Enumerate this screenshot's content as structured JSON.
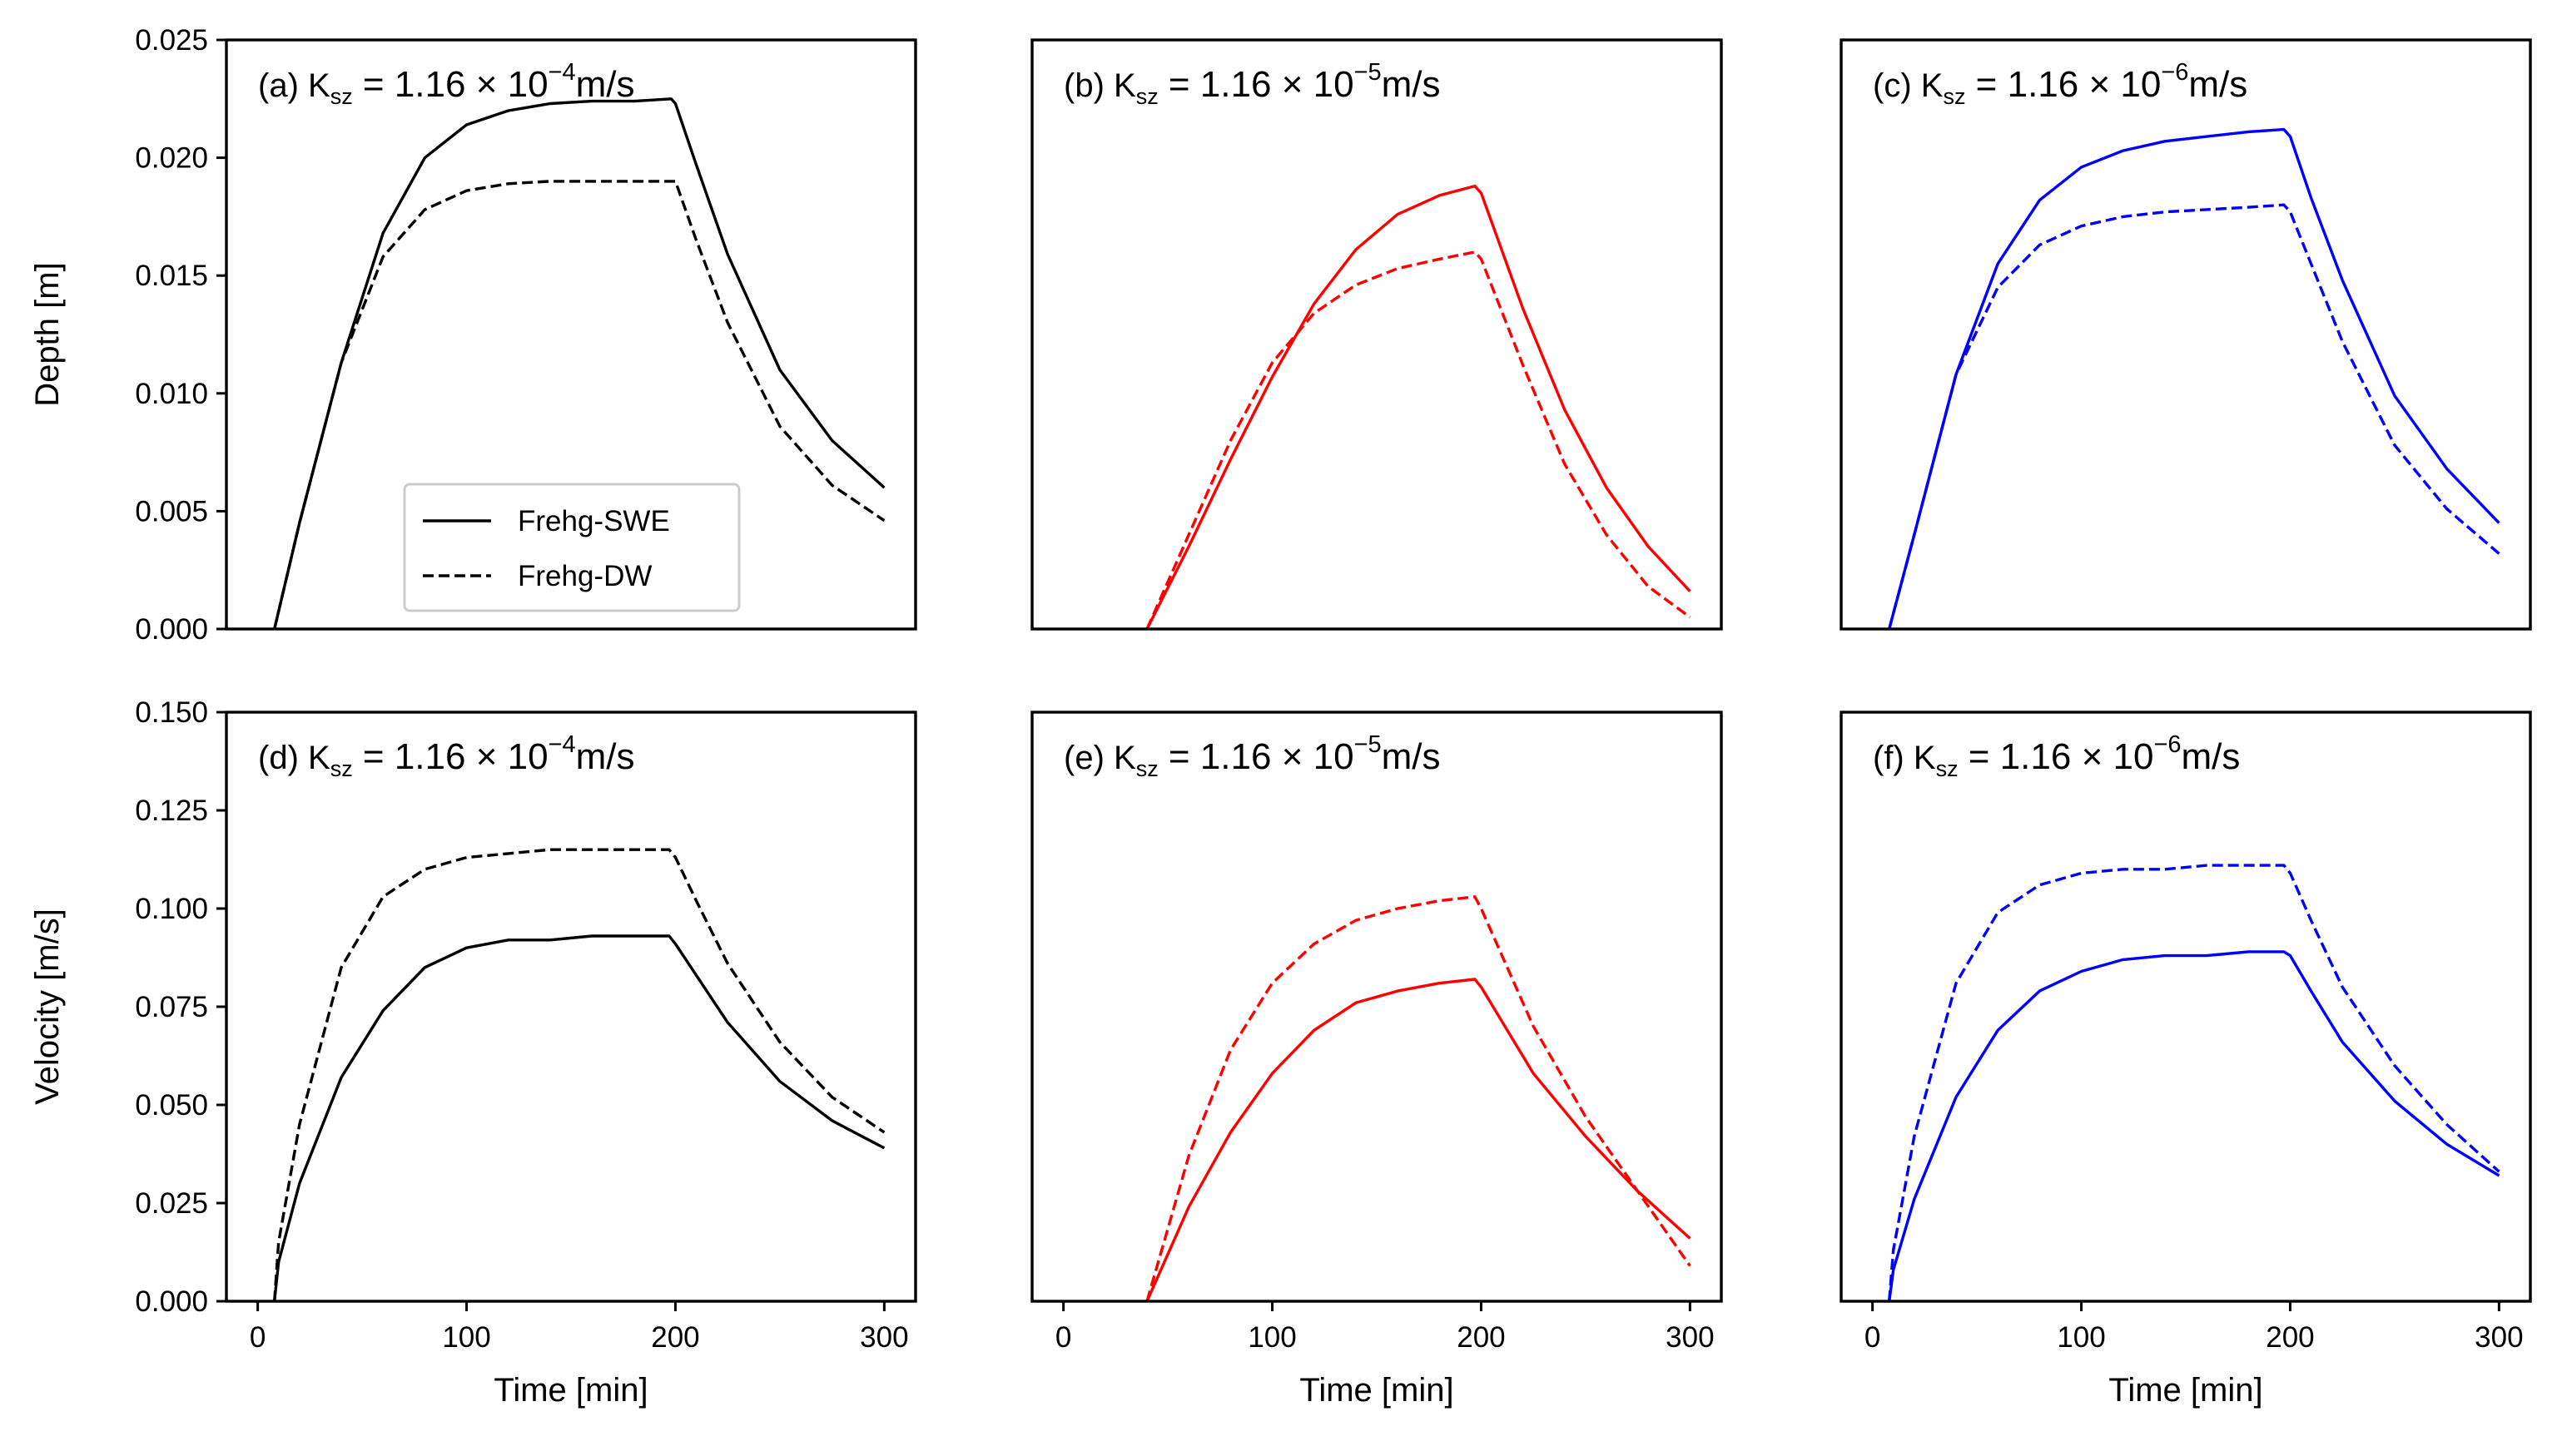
{
  "chart_data": [
    {
      "type": "line",
      "panel": "(a)",
      "label": {
        "prefix": "(a)",
        "symbol": "K",
        "subscript": "sz",
        "mantissa": "= 1.16 × 10",
        "exponent": "−4",
        "unit": "m/s"
      },
      "xlabel": "",
      "ylabel": "Depth [m]",
      "xlim": [
        -15,
        315
      ],
      "ylim": [
        0,
        0.025
      ],
      "yticks": [
        "0.000",
        "0.005",
        "0.010",
        "0.015",
        "0.020",
        "0.025"
      ],
      "xticks": [],
      "color": "#000000",
      "series": [
        {
          "name": "Frehg-SWE",
          "linestyle": "solid",
          "x": [
            8,
            20,
            40,
            60,
            80,
            100,
            120,
            140,
            160,
            180,
            198,
            200,
            210,
            225,
            250,
            275,
            300
          ],
          "y": [
            0.0,
            0.0045,
            0.0113,
            0.0168,
            0.02,
            0.0214,
            0.022,
            0.0223,
            0.0224,
            0.0224,
            0.0225,
            0.0223,
            0.0197,
            0.0159,
            0.011,
            0.008,
            0.006
          ]
        },
        {
          "name": "Frehg-DW",
          "linestyle": "dashed",
          "x": [
            8,
            20,
            40,
            60,
            80,
            100,
            120,
            140,
            160,
            180,
            200,
            210,
            225,
            250,
            275,
            300
          ],
          "y": [
            0.0,
            0.0045,
            0.0113,
            0.0158,
            0.0178,
            0.0186,
            0.0189,
            0.019,
            0.019,
            0.019,
            0.019,
            0.0165,
            0.013,
            0.0086,
            0.0061,
            0.0046
          ]
        }
      ],
      "legend": {
        "placement": "lower-center",
        "entries": [
          "Frehg-SWE",
          "Frehg-DW"
        ]
      }
    },
    {
      "type": "line",
      "panel": "(b)",
      "label": {
        "prefix": "(b)",
        "symbol": "K",
        "subscript": "sz",
        "mantissa": "= 1.16 × 10",
        "exponent": "−5",
        "unit": "m/s"
      },
      "xlabel": "",
      "ylabel": "",
      "xlim": [
        -15,
        315
      ],
      "ylim": [
        0,
        0.025
      ],
      "yticks": [],
      "xticks": [],
      "color": "#ff0000",
      "series": [
        {
          "name": "Frehg-SWE",
          "linestyle": "solid",
          "x": [
            40,
            60,
            80,
            100,
            120,
            140,
            160,
            180,
            197,
            200,
            220,
            240,
            260,
            280,
            300
          ],
          "y": [
            0.0,
            0.0035,
            0.0072,
            0.0107,
            0.0138,
            0.0161,
            0.0176,
            0.0184,
            0.0188,
            0.0185,
            0.0136,
            0.0093,
            0.006,
            0.0035,
            0.0016
          ]
        },
        {
          "name": "Frehg-DW",
          "linestyle": "dashed",
          "x": [
            40,
            60,
            80,
            100,
            120,
            140,
            160,
            180,
            197,
            200,
            220,
            240,
            260,
            280,
            300
          ],
          "y": [
            0.0,
            0.004,
            0.008,
            0.0113,
            0.0134,
            0.0146,
            0.0153,
            0.0157,
            0.016,
            0.0157,
            0.0112,
            0.007,
            0.004,
            0.0018,
            0.0005
          ]
        }
      ]
    },
    {
      "type": "line",
      "panel": "(c)",
      "label": {
        "prefix": "(c)",
        "symbol": "K",
        "subscript": "sz",
        "mantissa": "= 1.16 × 10",
        "exponent": "−6",
        "unit": "m/s"
      },
      "xlabel": "",
      "ylabel": "",
      "xlim": [
        -15,
        315
      ],
      "ylim": [
        0,
        0.025
      ],
      "yticks": [],
      "xticks": [],
      "color": "#0000ff",
      "series": [
        {
          "name": "Frehg-SWE",
          "linestyle": "solid",
          "x": [
            8,
            20,
            40,
            60,
            80,
            100,
            120,
            140,
            160,
            180,
            197,
            200,
            210,
            225,
            250,
            275,
            300
          ],
          "y": [
            0.0,
            0.004,
            0.0108,
            0.0155,
            0.0182,
            0.0196,
            0.0203,
            0.0207,
            0.0209,
            0.0211,
            0.0212,
            0.0209,
            0.0183,
            0.0148,
            0.0099,
            0.0068,
            0.0045
          ]
        },
        {
          "name": "Frehg-DW",
          "linestyle": "dashed",
          "x": [
            8,
            20,
            40,
            60,
            80,
            100,
            120,
            140,
            160,
            180,
            197,
            200,
            210,
            225,
            250,
            275,
            300
          ],
          "y": [
            0.0,
            0.004,
            0.0108,
            0.0145,
            0.0163,
            0.0171,
            0.0175,
            0.0177,
            0.0178,
            0.0179,
            0.018,
            0.0177,
            0.0155,
            0.0122,
            0.0078,
            0.0051,
            0.0032
          ]
        }
      ]
    },
    {
      "type": "line",
      "panel": "(d)",
      "label": {
        "prefix": "(d)",
        "symbol": "K",
        "subscript": "sz",
        "mantissa": "= 1.16 × 10",
        "exponent": "−4",
        "unit": "m/s"
      },
      "xlabel": "Time [min]",
      "ylabel": "Velocity [m/s]",
      "xlim": [
        -15,
        315
      ],
      "ylim": [
        0,
        0.15
      ],
      "yticks": [
        "0.000",
        "0.025",
        "0.050",
        "0.075",
        "0.100",
        "0.125",
        "0.150"
      ],
      "xticks": [
        "0",
        "100",
        "200",
        "300"
      ],
      "color": "#000000",
      "series": [
        {
          "name": "Frehg-SWE",
          "linestyle": "solid",
          "x": [
            8,
            10,
            20,
            40,
            60,
            80,
            100,
            120,
            140,
            160,
            180,
            197,
            200,
            210,
            225,
            250,
            275,
            300
          ],
          "y": [
            0.0,
            0.01,
            0.03,
            0.057,
            0.074,
            0.085,
            0.09,
            0.092,
            0.092,
            0.093,
            0.093,
            0.093,
            0.091,
            0.083,
            0.071,
            0.056,
            0.046,
            0.039
          ]
        },
        {
          "name": "Frehg-DW",
          "linestyle": "dashed",
          "x": [
            8,
            10,
            20,
            40,
            60,
            80,
            100,
            120,
            140,
            160,
            180,
            197,
            200,
            210,
            225,
            250,
            275,
            300
          ],
          "y": [
            0.0,
            0.015,
            0.045,
            0.085,
            0.103,
            0.11,
            0.113,
            0.114,
            0.115,
            0.115,
            0.115,
            0.115,
            0.113,
            0.102,
            0.086,
            0.066,
            0.052,
            0.043
          ]
        }
      ]
    },
    {
      "type": "line",
      "panel": "(e)",
      "label": {
        "prefix": "(e)",
        "symbol": "K",
        "subscript": "sz",
        "mantissa": "= 1.16 × 10",
        "exponent": "−5",
        "unit": "m/s"
      },
      "xlabel": "Time [min]",
      "ylabel": "",
      "xlim": [
        -15,
        315
      ],
      "ylim": [
        0,
        0.15
      ],
      "yticks": [],
      "xticks": [
        "0",
        "100",
        "200",
        "300"
      ],
      "color": "#ff0000",
      "series": [
        {
          "name": "Frehg-SWE",
          "linestyle": "solid",
          "x": [
            40,
            60,
            80,
            100,
            120,
            140,
            160,
            180,
            197,
            200,
            225,
            250,
            275,
            300
          ],
          "y": [
            0.0,
            0.024,
            0.043,
            0.058,
            0.069,
            0.076,
            0.079,
            0.081,
            0.082,
            0.08,
            0.058,
            0.042,
            0.028,
            0.016
          ]
        },
        {
          "name": "Frehg-DW",
          "linestyle": "dashed",
          "x": [
            40,
            60,
            80,
            100,
            120,
            140,
            160,
            180,
            197,
            200,
            225,
            250,
            275,
            300
          ],
          "y": [
            0.0,
            0.037,
            0.064,
            0.081,
            0.091,
            0.097,
            0.1,
            0.102,
            0.103,
            0.1,
            0.07,
            0.047,
            0.028,
            0.009
          ]
        }
      ]
    },
    {
      "type": "line",
      "panel": "(f)",
      "label": {
        "prefix": "(f)",
        "symbol": "K",
        "subscript": "sz",
        "mantissa": "= 1.16 × 10",
        "exponent": "−6",
        "unit": "m/s"
      },
      "xlabel": "Time [min]",
      "ylabel": "",
      "xlim": [
        -15,
        315
      ],
      "ylim": [
        0,
        0.15
      ],
      "yticks": [],
      "xticks": [
        "0",
        "100",
        "200",
        "300"
      ],
      "color": "#0000ff",
      "series": [
        {
          "name": "Frehg-SWE",
          "linestyle": "solid",
          "x": [
            8,
            10,
            20,
            40,
            60,
            80,
            100,
            120,
            140,
            160,
            180,
            197,
            200,
            210,
            225,
            250,
            275,
            300
          ],
          "y": [
            0.0,
            0.008,
            0.026,
            0.052,
            0.069,
            0.079,
            0.084,
            0.087,
            0.088,
            0.088,
            0.089,
            0.089,
            0.088,
            0.079,
            0.066,
            0.051,
            0.04,
            0.032
          ]
        },
        {
          "name": "Frehg-DW",
          "linestyle": "dashed",
          "x": [
            8,
            10,
            20,
            40,
            60,
            80,
            100,
            120,
            140,
            160,
            180,
            197,
            200,
            210,
            225,
            250,
            275,
            300
          ],
          "y": [
            0.0,
            0.013,
            0.042,
            0.081,
            0.099,
            0.106,
            0.109,
            0.11,
            0.11,
            0.111,
            0.111,
            0.111,
            0.109,
            0.097,
            0.08,
            0.06,
            0.045,
            0.033
          ]
        }
      ]
    }
  ]
}
